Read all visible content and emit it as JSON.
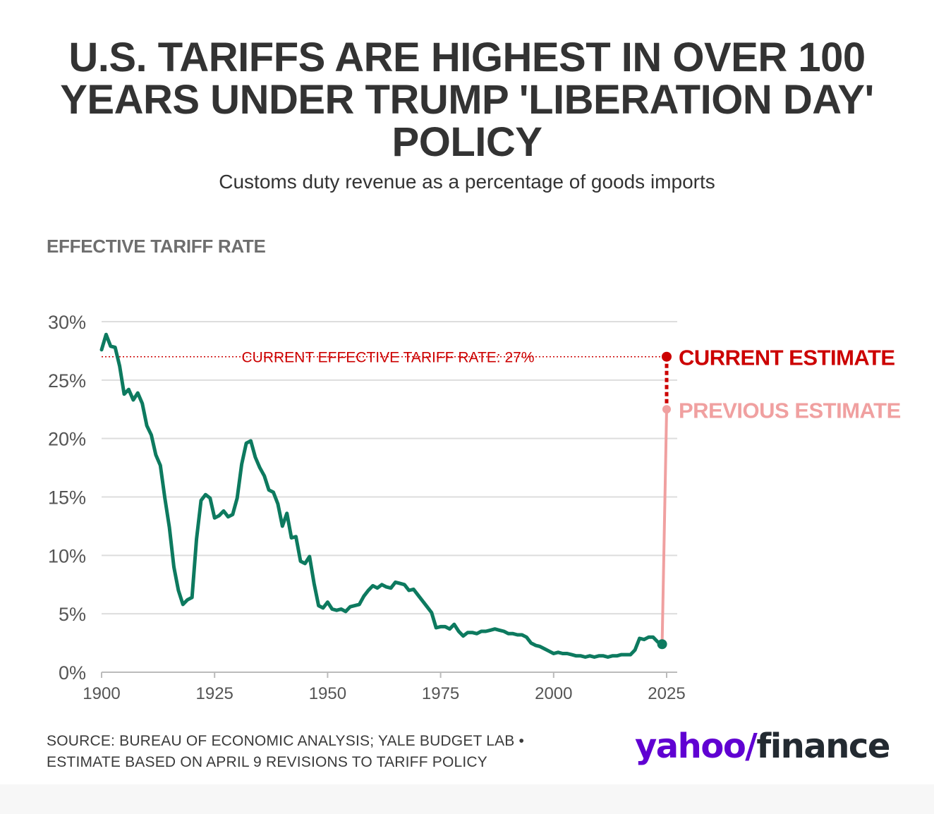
{
  "header": {
    "title_lines": [
      "U.S. TARIFFS ARE HIGHEST IN OVER 100",
      "YEARS UNDER TRUMP 'LIBERATION DAY'",
      "POLICY"
    ],
    "subtitle": "Customs duty revenue as a percentage of goods imports"
  },
  "chart_data": {
    "type": "line",
    "ylabel": "EFFECTIVE TARIFF RATE",
    "xlim": [
      1900,
      2025
    ],
    "ylim": [
      0,
      30
    ],
    "x_ticks": [
      1900,
      1925,
      1950,
      1975,
      2000,
      2025
    ],
    "y_ticks": [
      0,
      5,
      10,
      15,
      20,
      25,
      30
    ],
    "y_tick_labels": [
      "0%",
      "5%",
      "10%",
      "15%",
      "20%",
      "25%",
      "30%"
    ],
    "grid": true,
    "colors": {
      "series": "#0d7a5f",
      "current": "#cc0000",
      "previous": "#f0a0a0",
      "grid": "#dddddd"
    },
    "series": [
      {
        "x": [
          1900,
          1901,
          1902,
          1903,
          1904,
          1905,
          1906,
          1907,
          1908,
          1909,
          1910,
          1911,
          1912,
          1913,
          1914,
          1915,
          1916,
          1917,
          1918,
          1919,
          1920,
          1921,
          1922,
          1923,
          1924,
          1925,
          1926,
          1927,
          1928,
          1929,
          1930,
          1931,
          1932,
          1933,
          1934,
          1935,
          1936,
          1937,
          1938,
          1939,
          1940,
          1941,
          1942,
          1943,
          1944,
          1945,
          1946,
          1947,
          1948,
          1949,
          1950,
          1951,
          1952,
          1953,
          1954,
          1955,
          1956,
          1957,
          1958,
          1959,
          1960,
          1961,
          1962,
          1963,
          1964,
          1965,
          1966,
          1967,
          1968,
          1969,
          1970,
          1971,
          1972,
          1973,
          1974,
          1975,
          1976,
          1977,
          1978,
          1979,
          1980,
          1981,
          1982,
          1983,
          1984,
          1985,
          1986,
          1987,
          1988,
          1989,
          1990,
          1991,
          1992,
          1993,
          1994,
          1995,
          1996,
          1997,
          1998,
          1999,
          2000,
          2001,
          2002,
          2003,
          2004,
          2005,
          2006,
          2007,
          2008,
          2009,
          2010,
          2011,
          2012,
          2013,
          2014,
          2015,
          2016,
          2017,
          2018,
          2019,
          2020,
          2021,
          2022,
          2023,
          2024
        ],
        "values": [
          27.6,
          28.9,
          27.9,
          27.8,
          26.2,
          23.8,
          24.2,
          23.3,
          23.9,
          23.0,
          21.1,
          20.3,
          18.6,
          17.7,
          14.9,
          12.4,
          9.0,
          7.0,
          5.8,
          6.2,
          6.4,
          11.4,
          14.7,
          15.2,
          14.9,
          13.2,
          13.4,
          13.8,
          13.3,
          13.5,
          14.9,
          17.8,
          19.6,
          19.8,
          18.4,
          17.5,
          16.8,
          15.6,
          15.4,
          14.4,
          12.5,
          13.6,
          11.5,
          11.6,
          9.5,
          9.3,
          9.9,
          7.6,
          5.7,
          5.5,
          6.0,
          5.4,
          5.3,
          5.4,
          5.2,
          5.6,
          5.7,
          5.8,
          6.5,
          7.0,
          7.4,
          7.2,
          7.5,
          7.3,
          7.2,
          7.7,
          7.6,
          7.5,
          7.0,
          7.1,
          6.6,
          6.1,
          5.6,
          5.1,
          3.8,
          3.9,
          3.9,
          3.7,
          4.1,
          3.5,
          3.1,
          3.4,
          3.4,
          3.3,
          3.5,
          3.5,
          3.6,
          3.7,
          3.6,
          3.5,
          3.3,
          3.3,
          3.2,
          3.2,
          3.0,
          2.5,
          2.3,
          2.2,
          2.0,
          1.8,
          1.6,
          1.7,
          1.6,
          1.6,
          1.5,
          1.4,
          1.4,
          1.3,
          1.4,
          1.3,
          1.4,
          1.4,
          1.3,
          1.4,
          1.4,
          1.5,
          1.5,
          1.5,
          1.9,
          2.9,
          2.8,
          3.0,
          3.0,
          2.6,
          2.4
        ]
      }
    ],
    "reference_line": {
      "value": 27,
      "label": "CURRENT EFFECTIVE TARIFF RATE: 27%"
    },
    "estimates": [
      {
        "label": "CURRENT ESTIMATE",
        "x": 2025,
        "value": 27
      },
      {
        "label": "PREVIOUS ESTIMATE",
        "x": 2025,
        "value": 22.5
      }
    ]
  },
  "footer": {
    "source_line1": "SOURCE: BUREAU OF ECONOMIC ANALYSIS; YALE BUDGET LAB •",
    "source_line2": "ESTIMATE BASED ON APRIL 9 REVISIONS TO TARIFF POLICY",
    "logo_part1": "yahoo/",
    "logo_part2": "finance"
  }
}
